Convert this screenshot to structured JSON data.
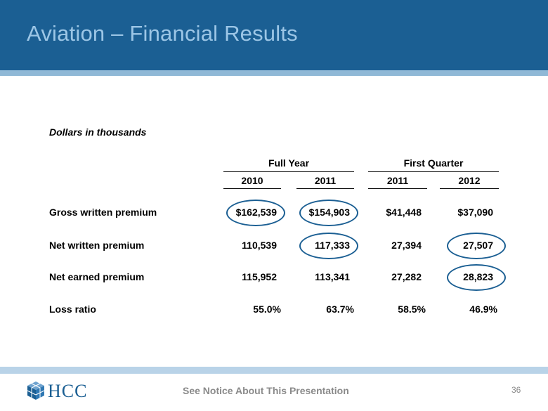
{
  "slide": {
    "title": "Aviation – Financial Results",
    "subtitle": "Dollars in thousands"
  },
  "table": {
    "groups": [
      {
        "label": "Full Year"
      },
      {
        "label": "First Quarter"
      }
    ],
    "columns": [
      "2010",
      "2011",
      "2011",
      "2012"
    ],
    "rows": [
      {
        "label": "Gross written premium",
        "values": [
          "$162,539",
          "$154,903",
          "$41,448",
          "$37,090"
        ]
      },
      {
        "label": "Net written premium",
        "values": [
          "110,539",
          "117,333",
          "27,394",
          "27,507"
        ]
      },
      {
        "label": "Net earned premium",
        "values": [
          "115,952",
          "113,341",
          "27,282",
          "28,823"
        ]
      },
      {
        "label": "Loss ratio",
        "values": [
          "55.0%",
          "63.7%",
          "58.5%",
          "46.9%"
        ]
      }
    ],
    "highlight_color": "#1b5f93"
  },
  "footer": {
    "logo_text": "HCC",
    "notice": "See Notice About This Presentation",
    "page_number": "36"
  },
  "colors": {
    "header_bg": "#1b5f93",
    "title_text": "#9cc6e6",
    "header_rule": "#8fb8d6",
    "footer_rule": "#b9d3e8"
  }
}
